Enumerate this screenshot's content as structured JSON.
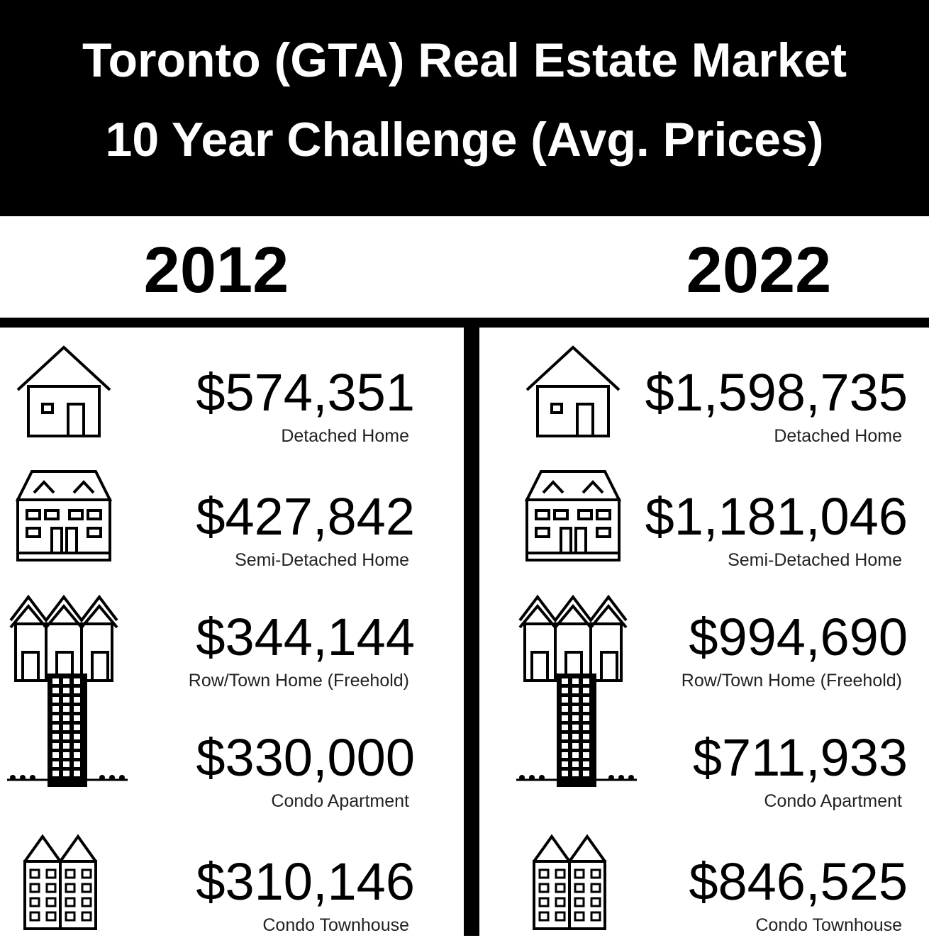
{
  "header": {
    "title_lines": [
      "Toronto (GTA) Real Estate Market",
      "10 Year Challenge (Avg. Prices)"
    ]
  },
  "columns": [
    {
      "year": "2012",
      "items": [
        {
          "price": "$574,351",
          "label": "Detached Home"
        },
        {
          "price": "$427,842",
          "label": "Semi-Detached Home"
        },
        {
          "price": "$344,144",
          "label": "Row/Town Home (Freehold)"
        },
        {
          "price": "$330,000",
          "label": "Condo Apartment"
        },
        {
          "price": "$310,146",
          "label": "Condo Townhouse"
        }
      ]
    },
    {
      "year": "2022",
      "items": [
        {
          "price": "$1,598,735",
          "label": "Detached Home"
        },
        {
          "price": "$1,181,046",
          "label": "Semi-Detached Home"
        },
        {
          "price": "$994,690",
          "label": "Row/Town Home (Freehold)"
        },
        {
          "price": "$711,933",
          "label": "Condo Apartment"
        },
        {
          "price": "$846,525",
          "label": "Condo Townhouse"
        }
      ]
    }
  ]
}
